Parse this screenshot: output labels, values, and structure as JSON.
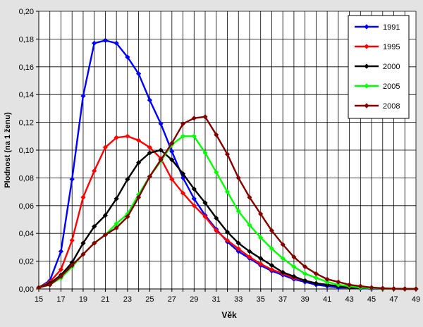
{
  "chart_data": {
    "type": "line",
    "title": "",
    "xlabel": "Věk",
    "ylabel": "Plodnost (na 1 ženu)",
    "xlim": [
      15,
      49
    ],
    "ylim": [
      0,
      0.2
    ],
    "grid": true,
    "legend_position": "top-right",
    "x_tick_labels": [
      "15",
      "17",
      "19",
      "21",
      "23",
      "25",
      "27",
      "29",
      "31",
      "33",
      "35",
      "37",
      "39",
      "41",
      "43",
      "45",
      "47",
      "49"
    ],
    "y_tick_labels": [
      "0,00",
      "0,02",
      "0,04",
      "0,06",
      "0,08",
      "0,10",
      "0,12",
      "0,14",
      "0,16",
      "0,18",
      "0,20"
    ],
    "x": [
      15,
      16,
      17,
      18,
      19,
      20,
      21,
      22,
      23,
      24,
      25,
      26,
      27,
      28,
      29,
      30,
      31,
      32,
      33,
      34,
      35,
      36,
      37,
      38,
      39,
      40,
      41,
      42,
      43,
      44,
      45,
      46,
      47,
      48,
      49
    ],
    "series": [
      {
        "name": "1991",
        "color": "#0000ff",
        "marker": "diamond",
        "values": [
          0.001,
          0.006,
          0.027,
          0.079,
          0.139,
          0.177,
          0.179,
          0.177,
          0.167,
          0.155,
          0.136,
          0.119,
          0.099,
          0.08,
          0.065,
          0.053,
          0.043,
          0.034,
          0.027,
          0.022,
          0.017,
          0.013,
          0.01,
          0.007,
          0.005,
          0.003,
          0.002,
          0.001,
          0.001,
          0.0005,
          0.0002,
          0.0001,
          0.0001,
          0.0,
          0.0
        ]
      },
      {
        "name": "1995",
        "color": "#ff0000",
        "marker": "diamond",
        "values": [
          0.001,
          0.005,
          0.014,
          0.035,
          0.066,
          0.085,
          0.102,
          0.109,
          0.11,
          0.107,
          0.102,
          0.094,
          0.079,
          0.069,
          0.06,
          0.052,
          0.042,
          0.035,
          0.029,
          0.023,
          0.018,
          0.014,
          0.011,
          0.008,
          0.006,
          0.004,
          0.003,
          0.002,
          0.001,
          0.0008,
          0.0005,
          0.0002,
          0.0001,
          0.0,
          0.0
        ]
      },
      {
        "name": "2000",
        "color": "#000000",
        "marker": "diamond",
        "values": [
          0.001,
          0.004,
          0.01,
          0.019,
          0.033,
          0.045,
          0.053,
          0.065,
          0.079,
          0.091,
          0.098,
          0.1,
          0.093,
          0.083,
          0.072,
          0.062,
          0.051,
          0.041,
          0.033,
          0.027,
          0.022,
          0.017,
          0.012,
          0.009,
          0.006,
          0.004,
          0.003,
          0.002,
          0.001,
          0.0008,
          0.0004,
          0.0002,
          0.0001,
          0.0,
          0.0
        ]
      },
      {
        "name": "2005",
        "color": "#00ff00",
        "marker": "diamond",
        "values": [
          0.001,
          0.003,
          0.008,
          0.016,
          0.025,
          0.033,
          0.039,
          0.047,
          0.054,
          0.068,
          0.081,
          0.092,
          0.104,
          0.11,
          0.11,
          0.098,
          0.084,
          0.07,
          0.056,
          0.046,
          0.037,
          0.029,
          0.022,
          0.016,
          0.011,
          0.008,
          0.005,
          0.003,
          0.002,
          0.001,
          0.0006,
          0.0003,
          0.0001,
          0.0,
          0.0
        ]
      },
      {
        "name": "2008",
        "color": "#800000",
        "marker": "diamond",
        "values": [
          0.001,
          0.003,
          0.009,
          0.017,
          0.025,
          0.033,
          0.039,
          0.044,
          0.052,
          0.066,
          0.081,
          0.093,
          0.105,
          0.119,
          0.123,
          0.124,
          0.111,
          0.097,
          0.08,
          0.066,
          0.054,
          0.042,
          0.032,
          0.023,
          0.016,
          0.011,
          0.007,
          0.005,
          0.003,
          0.002,
          0.001,
          0.0005,
          0.0002,
          0.0001,
          0.0
        ]
      }
    ]
  }
}
